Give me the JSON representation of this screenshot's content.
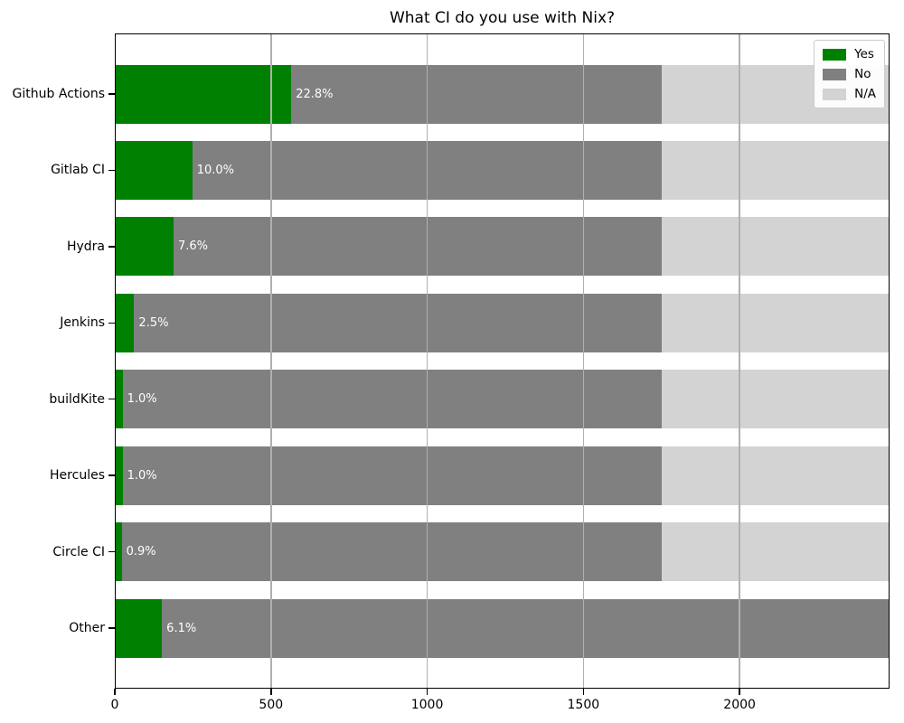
{
  "title": "What CI do you use with Nix?",
  "colors": {
    "yes": "#008000",
    "no": "#808080",
    "na": "#d3d3d3",
    "grid": "#b0b0b0",
    "spine": "#000000",
    "bar_label_text": "#ffffff",
    "legend_border": "#cccccc",
    "background": "#ffffff"
  },
  "chart_data": {
    "type": "bar",
    "orientation": "horizontal",
    "stacked": true,
    "title": "What CI do you use with Nix?",
    "categories": [
      "Github Actions",
      "Gitlab CI",
      "Hydra",
      "Jenkins",
      "buildKite",
      "Hercules",
      "Circle CI",
      "Other"
    ],
    "series": [
      {
        "name": "Yes",
        "color": "#008000",
        "values": [
          565,
          248,
          188,
          62,
          25,
          25,
          22,
          151
        ]
      },
      {
        "name": "No",
        "color": "#808080",
        "values": [
          1185,
          1502,
          1562,
          1688,
          1725,
          1725,
          1728,
          2329
        ]
      },
      {
        "name": "N/A",
        "color": "#d3d3d3",
        "values": [
          730,
          730,
          730,
          730,
          730,
          730,
          730,
          0
        ]
      }
    ],
    "bar_labels": [
      "22.8%",
      "10.0%",
      "7.6%",
      "2.5%",
      "1.0%",
      "1.0%",
      "0.9%",
      "6.1%"
    ],
    "xlabel": "",
    "ylabel": "",
    "xlim": [
      0,
      2480
    ],
    "x_ticks": [
      0,
      500,
      1000,
      1500,
      2000
    ],
    "grid": "vertical",
    "grid_on_top": true,
    "legend_position": "upper right",
    "legend_entries": [
      "Yes",
      "No",
      "N/A"
    ]
  }
}
